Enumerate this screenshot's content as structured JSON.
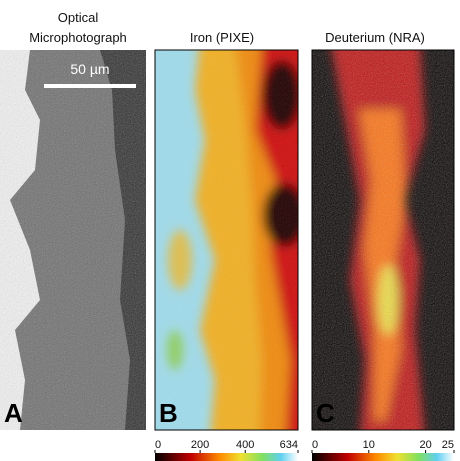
{
  "panels": [
    {
      "title_lines": [
        "Optical",
        "Microphotograph"
      ],
      "letter": "A",
      "scale_bar": "50 µm"
    },
    {
      "title_lines": [
        "Iron (PIXE)"
      ],
      "letter": "B",
      "colorbar": {
        "range": [
          0,
          634
        ],
        "ticks": [
          0,
          200,
          400,
          634
        ]
      }
    },
    {
      "title_lines": [
        "Deuterium (NRA)"
      ],
      "letter": "C",
      "colorbar": {
        "range": [
          0,
          25
        ],
        "ticks": [
          0,
          10,
          20,
          25
        ]
      }
    }
  ]
}
